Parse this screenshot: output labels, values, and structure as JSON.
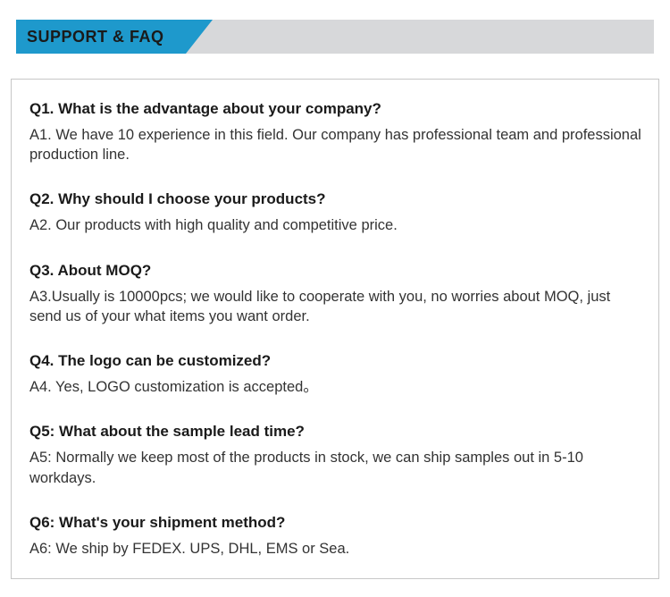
{
  "header": {
    "title": "SUPPORT & FAQ",
    "tab_bg_color": "#1e99cc",
    "bar_bg_color": "#d7d8da",
    "title_color": "#1a1a1a",
    "title_fontsize": 18
  },
  "faq_box": {
    "border_color": "#c7c7c7",
    "bg_color": "#ffffff"
  },
  "typography": {
    "question_fontsize": 17,
    "question_weight": "bold",
    "question_color": "#1a1a1a",
    "answer_fontsize": 16.5,
    "answer_color": "#333333"
  },
  "faq": [
    {
      "q": "Q1. What is the advantage about your company?",
      "a": "A1. We have 10 experience in this field. Our company has professional team and professional production line."
    },
    {
      "q": "Q2. Why should I choose your products?",
      "a": "A2. Our products with high quality and competitive price."
    },
    {
      "q": "Q3. About MOQ?",
      "a": "A3.Usually is 10000pcs; we would like to cooperate with you, no worries about MOQ, just send us of your what items you want order."
    },
    {
      "q": "Q4. The logo can be customized?",
      "a": "A4. Yes, LOGO customization is accepted。"
    },
    {
      "q": "Q5: What about the sample lead time?",
      "a": "A5: Normally we keep most of the products in stock, we can ship samples out in 5-10 workdays."
    },
    {
      "q": "Q6: What's your shipment method?",
      "a": "A6: We ship by FEDEX. UPS, DHL, EMS or Sea."
    }
  ]
}
